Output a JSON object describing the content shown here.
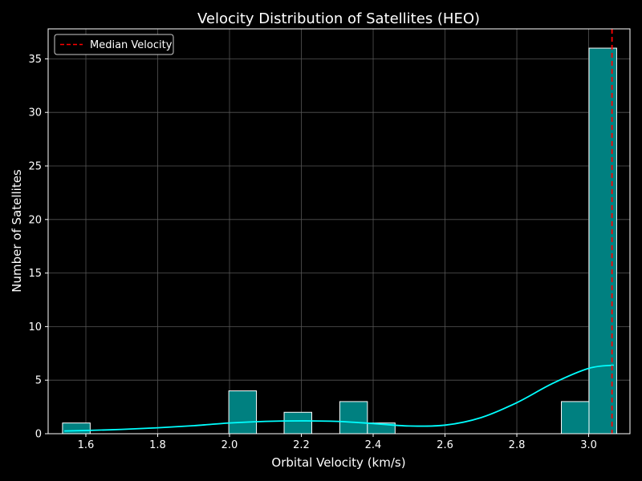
{
  "chart_data": {
    "type": "bar",
    "title": "Velocity Distribution of Satellites (HEO)",
    "xlabel": "Orbital Velocity (km/s)",
    "ylabel": "Number of Satellites",
    "xlim": [
      1.495,
      3.115
    ],
    "ylim": [
      0,
      37.8
    ],
    "xticks": [
      1.6,
      1.8,
      2.0,
      2.2,
      2.4,
      2.6,
      2.8,
      3.0
    ],
    "xtick_labels": [
      "1.6",
      "1.8",
      "2.0",
      "2.2",
      "2.4",
      "2.6",
      "2.8",
      "3.0"
    ],
    "yticks": [
      0,
      5,
      10,
      15,
      20,
      25,
      30,
      35
    ],
    "ytick_labels": [
      "0",
      "5",
      "10",
      "15",
      "20",
      "25",
      "30",
      "35"
    ],
    "grid": true,
    "legend_placement": "top-left",
    "bins": [
      {
        "x0": 1.535,
        "x1": 1.612,
        "count": 1
      },
      {
        "x0": 1.998,
        "x1": 2.075,
        "count": 4
      },
      {
        "x0": 2.152,
        "x1": 2.229,
        "count": 2
      },
      {
        "x0": 2.307,
        "x1": 2.384,
        "count": 3
      },
      {
        "x0": 2.384,
        "x1": 2.461,
        "count": 1
      },
      {
        "x0": 2.924,
        "x1": 3.001,
        "count": 3
      },
      {
        "x0": 3.001,
        "x1": 3.078,
        "count": 36
      }
    ],
    "kde": {
      "x": [
        1.54,
        1.6,
        1.7,
        1.8,
        1.9,
        2.0,
        2.1,
        2.2,
        2.3,
        2.4,
        2.5,
        2.6,
        2.7,
        2.8,
        2.9,
        3.0,
        3.07
      ],
      "y": [
        0.25,
        0.3,
        0.4,
        0.55,
        0.75,
        1.0,
        1.15,
        1.2,
        1.15,
        0.95,
        0.72,
        0.8,
        1.5,
        2.9,
        4.7,
        6.1,
        6.4
      ]
    },
    "median_line": {
      "x": 3.065,
      "label": "Median Velocity"
    },
    "colors": {
      "background": "#000000",
      "bar_fill": "#008080",
      "bar_edge": "#ffffff",
      "kde": "#00ffff",
      "median": "#ff0000",
      "grid": "#555555",
      "text": "#ffffff"
    }
  }
}
